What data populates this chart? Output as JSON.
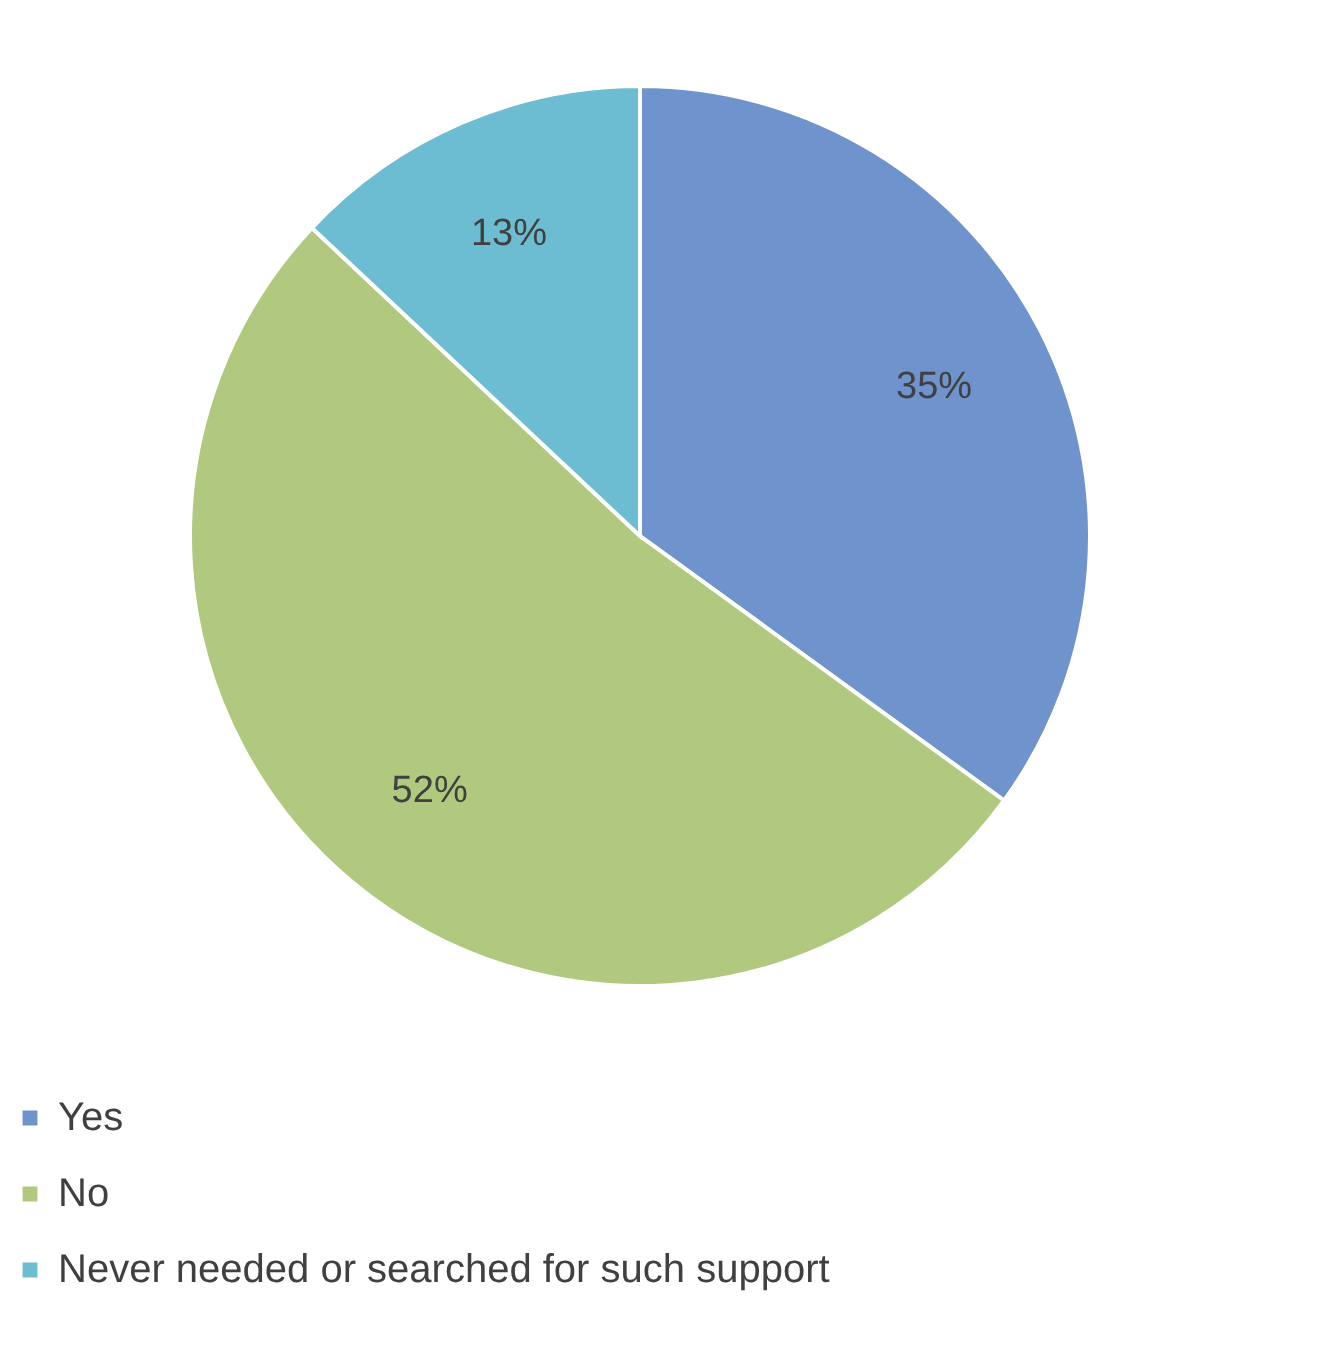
{
  "chart_data": {
    "type": "pie",
    "categories": [
      "Yes",
      "No",
      "Never needed or searched for such support"
    ],
    "values": [
      35,
      52,
      13
    ],
    "colors": [
      "#6f93cc",
      "#b1c97f",
      "#6cbdd1"
    ],
    "value_labels": [
      "35%",
      "52%",
      "13%"
    ],
    "legend": "bottom"
  }
}
